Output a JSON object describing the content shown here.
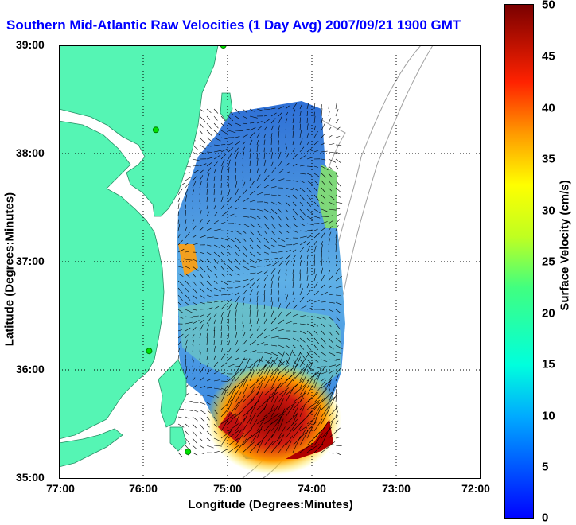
{
  "title": "Southern Mid-Atlantic Raw Velocities (1 Day Avg) 2007/09/21 1900 GMT",
  "x_axis": {
    "label": "Longitude (Degrees:Minutes)",
    "ticks": [
      "77:00",
      "76:00",
      "75:00",
      "74:00",
      "73:00",
      "72:00"
    ]
  },
  "y_axis": {
    "label": "Latitude (Degrees:Minutes)",
    "ticks": [
      "39:00",
      "38:00",
      "37:00",
      "36:00",
      "35:00"
    ]
  },
  "colorbar": {
    "label": "Surface Velocity (cm/s)",
    "ticks": [
      "50",
      "45",
      "40",
      "35",
      "30",
      "25",
      "20",
      "15",
      "10",
      "5",
      "0"
    ],
    "range": [
      0,
      50
    ]
  },
  "colors": {
    "land": "#55f5b4",
    "title": "#0000ff",
    "station": "#00e000"
  },
  "map": {
    "lon_range": [
      -77,
      -72
    ],
    "lat_range": [
      35,
      39
    ],
    "stations": [
      {
        "lon": -75.05,
        "lat": 39.0
      },
      {
        "lon": -75.85,
        "lat": 38.22
      },
      {
        "lon": -75.93,
        "lat": 36.18
      },
      {
        "lon": -75.47,
        "lat": 35.25
      }
    ]
  }
}
